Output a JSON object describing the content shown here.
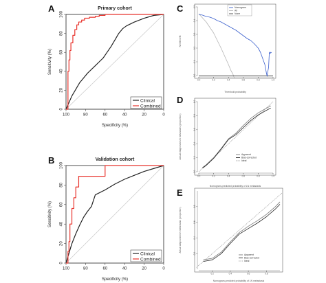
{
  "chart_data": [
    {
      "panel": "A",
      "type": "line",
      "title": "Primary cohort",
      "xlabel": "Specificity (%)",
      "ylabel": "Sensitivity (%)",
      "xlim": [
        100,
        0
      ],
      "ylim": [
        0,
        100
      ],
      "xticks": [
        100,
        80,
        60,
        40,
        20,
        0
      ],
      "yticks": [
        0,
        20,
        40,
        60,
        80,
        100
      ],
      "grid": false,
      "legend_position": "bottom-right",
      "series": [
        {
          "name": "Clinical",
          "color": "#222222",
          "x": [
            100,
            97,
            94,
            90,
            86,
            82,
            78,
            74,
            70,
            66,
            62,
            58,
            54,
            50,
            46,
            42,
            38,
            30,
            20,
            10,
            0
          ],
          "y": [
            0,
            7,
            14,
            21,
            28,
            33,
            38,
            42,
            46,
            50,
            54,
            60,
            66,
            73,
            80,
            85,
            88,
            92,
            96,
            99,
            100
          ]
        },
        {
          "name": "Combined",
          "color": "#e8312a",
          "x": [
            100,
            98,
            98,
            97,
            97,
            96,
            96,
            95,
            95,
            93,
            93,
            91,
            91,
            89,
            89,
            87,
            87,
            84,
            84,
            81,
            81,
            76,
            76,
            70,
            70,
            66,
            66,
            60,
            60,
            40,
            20,
            0
          ],
          "y": [
            0,
            0,
            40,
            40,
            52,
            52,
            62,
            62,
            70,
            70,
            78,
            78,
            84,
            84,
            89,
            89,
            92,
            92,
            94,
            94,
            96,
            96,
            97,
            97,
            98,
            98,
            99,
            99,
            100,
            100,
            100,
            100
          ]
        },
        {
          "name": "reference",
          "color": "#c8c8c8",
          "x": [
            100,
            0
          ],
          "y": [
            0,
            100
          ]
        }
      ]
    },
    {
      "panel": "B",
      "type": "line",
      "title": "Validation cohort",
      "xlabel": "Specificity (%)",
      "ylabel": "Sensitivity (%)",
      "xlim": [
        100,
        0
      ],
      "ylim": [
        0,
        100
      ],
      "xticks": [
        100,
        80,
        60,
        40,
        20,
        0
      ],
      "yticks": [
        0,
        20,
        40,
        60,
        80,
        100
      ],
      "grid": false,
      "legend_position": "bottom-right",
      "series": [
        {
          "name": "Clinical",
          "color": "#222222",
          "x": [
            100,
            97,
            94,
            90,
            86,
            82,
            78,
            74,
            72,
            70,
            68,
            60,
            50,
            40,
            30,
            20,
            10,
            0
          ],
          "y": [
            0,
            10,
            20,
            30,
            39,
            47,
            53,
            58,
            64,
            70,
            71,
            75,
            81,
            86,
            90,
            94,
            97,
            100
          ]
        },
        {
          "name": "Combined",
          "color": "#e8312a",
          "x": [
            100,
            98,
            98,
            97,
            97,
            96,
            96,
            94,
            94,
            92,
            92,
            90,
            90,
            87,
            87,
            84,
            84,
            70,
            70,
            60,
            60,
            0
          ],
          "y": [
            0,
            0,
            12,
            12,
            22,
            22,
            40,
            40,
            56,
            56,
            67,
            67,
            78,
            78,
            89,
            89,
            89,
            89,
            89,
            89,
            100,
            100
          ]
        },
        {
          "name": "reference",
          "color": "#c8c8c8",
          "x": [
            100,
            0
          ],
          "y": [
            0,
            100
          ]
        }
      ]
    },
    {
      "panel": "C",
      "type": "line",
      "xlabel": "Threshold probability",
      "ylabel": "Net Benefit",
      "xlim": [
        0,
        1
      ],
      "ylim": [
        0,
        0.5
      ],
      "xticks": [
        0.0,
        0.2,
        0.4,
        0.6,
        0.8,
        1.0
      ],
      "yticks": [
        0.0,
        0.1,
        0.2,
        0.3,
        0.4,
        0.5
      ],
      "grid": false,
      "legend_position": "top-right",
      "series": [
        {
          "name": "Nomogram",
          "color": "#3a5fcd",
          "x": [
            0.0,
            0.05,
            0.1,
            0.15,
            0.2,
            0.25,
            0.3,
            0.35,
            0.4,
            0.45,
            0.5,
            0.55,
            0.6,
            0.65,
            0.7,
            0.75,
            0.8,
            0.83,
            0.85,
            0.87,
            0.89,
            0.9,
            0.91,
            0.92,
            0.93,
            0.94,
            0.95,
            0.96,
            0.97,
            0.98
          ],
          "y": [
            0.445,
            0.44,
            0.43,
            0.425,
            0.415,
            0.4,
            0.39,
            0.375,
            0.36,
            0.345,
            0.33,
            0.31,
            0.29,
            0.27,
            0.255,
            0.23,
            0.2,
            0.17,
            0.14,
            0.11,
            0.08,
            0.05,
            0.02,
            -0.005,
            0.03,
            0.06,
            0.17,
            0.16,
            0.17,
            0.165
          ]
        },
        {
          "name": "All",
          "color": "#b4b4b4",
          "x": [
            0.0,
            0.1,
            0.2,
            0.3,
            0.35,
            0.4,
            0.43,
            0.46,
            0.48
          ],
          "y": [
            0.45,
            0.39,
            0.31,
            0.2,
            0.14,
            0.08,
            0.04,
            0.01,
            -0.02
          ]
        },
        {
          "name": "None",
          "color": "#444444",
          "x": [
            0,
            1
          ],
          "y": [
            0,
            0
          ]
        }
      ]
    },
    {
      "panel": "D",
      "type": "line",
      "xlabel": "Nomogram-predicted probability of LN metastasis",
      "ylabel": "Actual diagnosed LN metastasis (proportion)",
      "xlim": [
        0,
        1
      ],
      "ylim": [
        0,
        1
      ],
      "xticks": [
        0.0,
        0.2,
        0.4,
        0.6,
        0.8,
        1.0
      ],
      "yticks": [
        0.0,
        0.2,
        0.4,
        0.6,
        0.8,
        1.0
      ],
      "grid": false,
      "legend_position": "bottom-right",
      "series": [
        {
          "name": "Apparent",
          "color": "#777777",
          "x": [
            0.05,
            0.1,
            0.2,
            0.3,
            0.4,
            0.5,
            0.6,
            0.7,
            0.8,
            0.9,
            0.97
          ],
          "y": [
            0.06,
            0.1,
            0.2,
            0.33,
            0.47,
            0.55,
            0.66,
            0.76,
            0.84,
            0.9,
            0.94
          ]
        },
        {
          "name": "Bias-corrected",
          "color": "#222222",
          "x": [
            0.05,
            0.1,
            0.2,
            0.3,
            0.4,
            0.5,
            0.6,
            0.7,
            0.8,
            0.9,
            0.97
          ],
          "y": [
            0.05,
            0.09,
            0.19,
            0.32,
            0.46,
            0.53,
            0.63,
            0.73,
            0.81,
            0.87,
            0.91
          ]
        },
        {
          "name": "Ideal",
          "color": "#aaaaaa",
          "x": [
            0,
            1
          ],
          "y": [
            0,
            1
          ]
        }
      ]
    },
    {
      "panel": "E",
      "type": "line",
      "xlabel": "Nomogram-predicted probability of LN metastasis",
      "ylabel": "Actual diagnosed LN metastasis (proportion)",
      "xlim": [
        0.05,
        0.95
      ],
      "ylim": [
        0,
        1
      ],
      "xticks": [
        0.2,
        0.4,
        0.6,
        0.8
      ],
      "yticks": [
        0.2,
        0.4,
        0.6,
        0.8
      ],
      "grid": false,
      "legend_position": "bottom-right",
      "series": [
        {
          "name": "Apparent",
          "color": "#777777",
          "x": [
            0.1,
            0.2,
            0.3,
            0.4,
            0.5,
            0.6,
            0.7,
            0.8,
            0.9,
            0.95
          ],
          "y": [
            0.12,
            0.14,
            0.22,
            0.35,
            0.47,
            0.55,
            0.62,
            0.7,
            0.8,
            0.86
          ]
        },
        {
          "name": "Bias-corrected",
          "color": "#222222",
          "x": [
            0.1,
            0.2,
            0.3,
            0.4,
            0.5,
            0.6,
            0.7,
            0.8,
            0.9,
            0.95
          ],
          "y": [
            0.1,
            0.12,
            0.2,
            0.33,
            0.45,
            0.52,
            0.59,
            0.67,
            0.77,
            0.83
          ]
        },
        {
          "name": "Ideal",
          "color": "#aaaaaa",
          "x": [
            0,
            1
          ],
          "y": [
            0,
            1
          ]
        }
      ]
    }
  ]
}
